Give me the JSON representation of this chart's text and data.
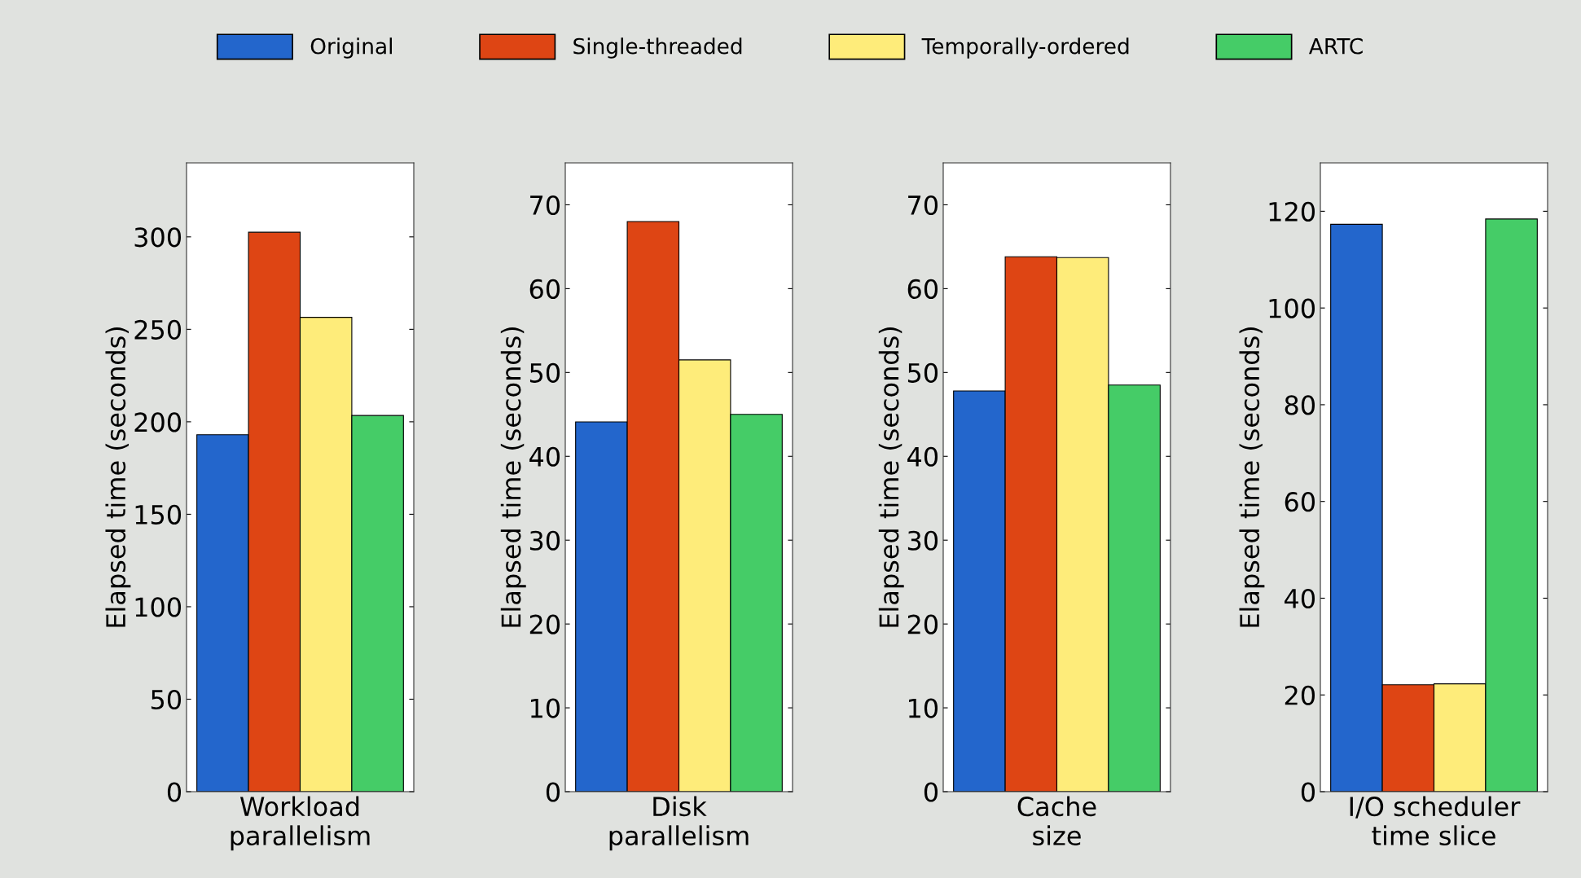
{
  "chart_data": [
    {
      "type": "bar",
      "categories": [
        "Workload\nparallelism"
      ],
      "ylabel": "Elapsed time (seconds)",
      "ylim": [
        0,
        340
      ],
      "yticks": [
        0,
        50,
        100,
        150,
        200,
        250,
        300
      ],
      "legend": "top",
      "grid": false,
      "series": [
        {
          "name": "Original",
          "color": "#2366cc",
          "values": [
            193
          ]
        },
        {
          "name": "Single-threaded",
          "color": "#de4514",
          "values": [
            302.5
          ]
        },
        {
          "name": "Temporally-ordered",
          "color": "#feec7a",
          "values": [
            256.5
          ]
        },
        {
          "name": "ARTC",
          "color": "#45cc67",
          "values": [
            203.4
          ]
        }
      ]
    },
    {
      "type": "bar",
      "categories": [
        "Disk\nparallelism"
      ],
      "ylabel": "Elapsed time (seconds)",
      "ylim": [
        0,
        75
      ],
      "yticks": [
        0,
        10,
        20,
        30,
        40,
        50,
        60,
        70
      ],
      "grid": false,
      "series": [
        {
          "color": "#2366cc",
          "values": [
            44.1
          ]
        },
        {
          "color": "#de4514",
          "values": [
            68.0
          ]
        },
        {
          "color": "#feec7a",
          "values": [
            51.5
          ]
        },
        {
          "color": "#45cc67",
          "values": [
            45.0
          ]
        }
      ]
    },
    {
      "type": "bar",
      "categories": [
        "Cache\nsize"
      ],
      "ylabel": "Elapsed time (seconds)",
      "ylim": [
        0,
        75
      ],
      "yticks": [
        0,
        10,
        20,
        30,
        40,
        50,
        60,
        70
      ],
      "grid": false,
      "series": [
        {
          "color": "#2366cc",
          "values": [
            47.8
          ]
        },
        {
          "color": "#de4514",
          "values": [
            63.8
          ]
        },
        {
          "color": "#feec7a",
          "values": [
            63.7
          ]
        },
        {
          "color": "#45cc67",
          "values": [
            48.5
          ]
        }
      ]
    },
    {
      "type": "bar",
      "categories": [
        "I/O scheduler\ntime slice"
      ],
      "ylabel": "Elapsed time (seconds)",
      "ylim": [
        0,
        130
      ],
      "yticks": [
        0,
        20,
        40,
        60,
        80,
        100,
        120
      ],
      "grid": false,
      "series": [
        {
          "color": "#2366cc",
          "values": [
            117.3
          ]
        },
        {
          "color": "#de4514",
          "values": [
            22.1
          ]
        },
        {
          "color": "#feec7a",
          "values": [
            22.3
          ]
        },
        {
          "color": "#45cc67",
          "values": [
            118.4
          ]
        }
      ]
    }
  ]
}
